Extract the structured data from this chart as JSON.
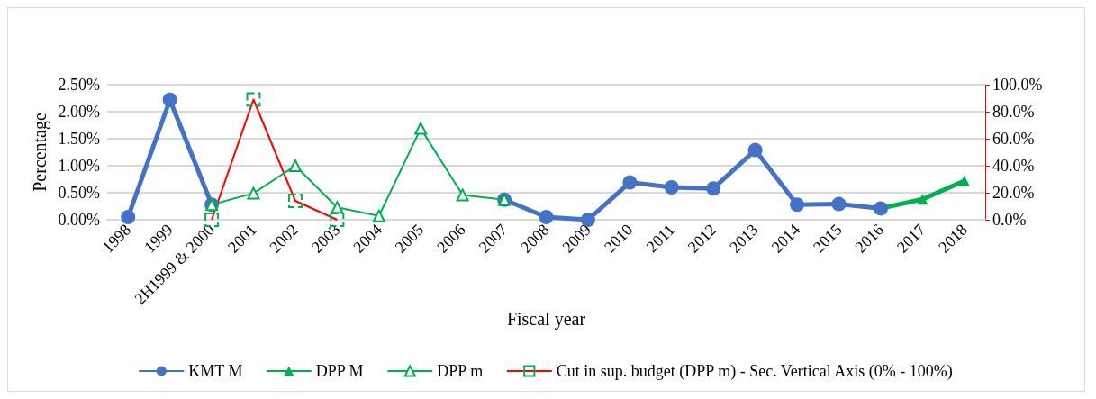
{
  "chart_data": {
    "type": "line",
    "xlabel": "Fiscal year",
    "ylabel": "Percentage",
    "categories": [
      "1998",
      "1999",
      "2H1999 & 2000",
      "2001",
      "2002",
      "2003",
      "2004",
      "2005",
      "2006",
      "2007",
      "2008",
      "2009",
      "2010",
      "2011",
      "2012",
      "2013",
      "2014",
      "2015",
      "2016",
      "2017",
      "2018"
    ],
    "series": [
      {
        "name": "KMT M",
        "color": "#4472c4",
        "marker": "circle",
        "values": [
          0.05,
          2.22,
          0.28,
          null,
          null,
          null,
          null,
          null,
          null,
          0.37,
          0.05,
          0.0,
          0.69,
          0.6,
          0.58,
          1.29,
          0.28,
          0.29,
          0.21,
          null,
          null
        ]
      },
      {
        "name": "DPP M",
        "color": "#00b050",
        "marker": "triangle",
        "values": [
          null,
          null,
          null,
          null,
          null,
          null,
          null,
          null,
          null,
          null,
          null,
          null,
          null,
          null,
          null,
          null,
          null,
          null,
          0.21,
          0.38,
          0.72
        ]
      },
      {
        "name": "DPP m",
        "color": "#00b050",
        "marker": "triangle",
        "values": [
          null,
          null,
          0.28,
          0.49,
          1.0,
          0.23,
          0.07,
          1.69,
          0.46,
          0.37,
          null,
          null,
          null,
          null,
          null,
          null,
          null,
          null,
          null,
          null,
          null
        ]
      },
      {
        "name": "Cut in sup. budget (DPP m) - Sec. Vertical Axis (0% - 100%)",
        "color": "#ff0000",
        "marker": "square",
        "axis": "y2",
        "values": [
          null,
          null,
          0,
          89,
          14,
          0,
          null,
          null,
          null,
          null,
          null,
          null,
          null,
          null,
          null,
          null,
          null,
          null,
          null,
          null,
          null
        ]
      }
    ],
    "ylim": [
      0,
      2.5
    ],
    "yticks": [
      {
        "value": 0,
        "label": "0.00%"
      },
      {
        "value": 0.5,
        "label": "0.50%"
      },
      {
        "value": 1,
        "label": "1.00%"
      },
      {
        "value": 1.5,
        "label": "1.50%"
      },
      {
        "value": 2,
        "label": "2.00%"
      },
      {
        "value": 2.5,
        "label": "2.50%"
      }
    ],
    "y2lim": [
      0,
      100
    ],
    "y2ticks": [
      {
        "value": 0,
        "label": "0.0%"
      },
      {
        "value": 20,
        "label": "20.0%"
      },
      {
        "value": 40,
        "label": "40.0%"
      },
      {
        "value": 60,
        "label": "60.0%"
      },
      {
        "value": 80,
        "label": "80.0%"
      },
      {
        "value": 100,
        "label": "100.0%"
      }
    ],
    "grid": "y",
    "legend": "bottom"
  }
}
